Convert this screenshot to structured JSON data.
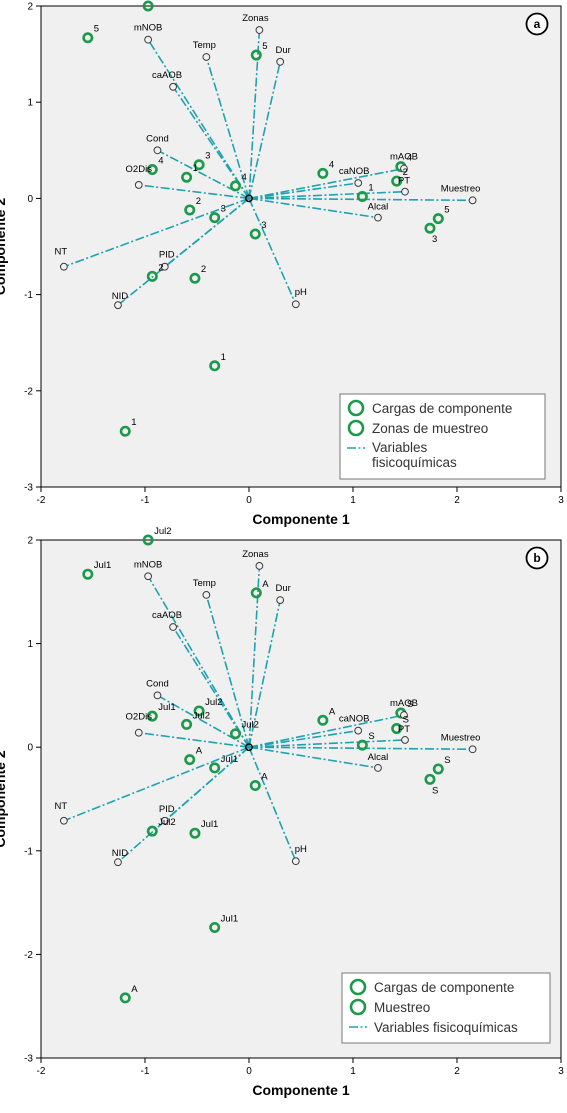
{
  "chart_data": [
    {
      "type": "scatter",
      "panel_label": "a",
      "xlabel": "Componente 1",
      "ylabel": "Componente 2",
      "xlim": [
        -2,
        3
      ],
      "ylim": [
        -3,
        2
      ],
      "xticks": [
        "-2",
        "-1",
        "0",
        "1",
        "2",
        "3"
      ],
      "yticks": [
        "-3",
        "-2",
        "-1",
        "0",
        "1",
        "2"
      ],
      "legend_position": "bottom-right",
      "legend": [
        "Cargas de componente",
        "Zonas de muestreo",
        "Variables fisicoquímicas"
      ],
      "variables": [
        {
          "name": "Zonas",
          "x": 0.1,
          "y": 1.75
        },
        {
          "name": "Dur",
          "x": 0.3,
          "y": 1.42
        },
        {
          "name": "Temp",
          "x": -0.41,
          "y": 1.47
        },
        {
          "name": "mNOB",
          "x": -0.97,
          "y": 1.65
        },
        {
          "name": "caAOB",
          "x": -0.73,
          "y": 1.16
        },
        {
          "name": "Cond",
          "x": -0.88,
          "y": 0.5
        },
        {
          "name": "O2Dis",
          "x": -1.06,
          "y": 0.14
        },
        {
          "name": "NT",
          "x": -1.78,
          "y": -0.71
        },
        {
          "name": "PID",
          "x": -0.81,
          "y": -0.71
        },
        {
          "name": "NID",
          "x": -1.26,
          "y": -1.11
        },
        {
          "name": "pH",
          "x": 0.45,
          "y": -1.1
        },
        {
          "name": "caNOB",
          "x": 1.05,
          "y": 0.16
        },
        {
          "name": "mAOB",
          "x": 1.49,
          "y": 0.31
        },
        {
          "name": "Alcal",
          "x": 1.24,
          "y": -0.2
        },
        {
          "name": "PT",
          "x": 1.5,
          "y": 0.07
        },
        {
          "name": "Muestreo",
          "x": 2.15,
          "y": -0.02
        }
      ],
      "zones": [
        {
          "label": "5",
          "x": -0.97,
          "y": 2.0
        },
        {
          "label": "5",
          "x": -1.55,
          "y": 1.67
        },
        {
          "label": "5",
          "x": 0.07,
          "y": 1.49
        },
        {
          "label": "4",
          "x": -0.93,
          "y": 0.3
        },
        {
          "label": "3",
          "x": -0.48,
          "y": 0.35
        },
        {
          "label": "1",
          "x": -0.6,
          "y": 0.22
        },
        {
          "label": "4",
          "x": -0.13,
          "y": 0.13
        },
        {
          "label": "2",
          "x": -0.57,
          "y": -0.12
        },
        {
          "label": "3",
          "x": -0.33,
          "y": -0.2
        },
        {
          "label": "3",
          "x": 0.06,
          "y": -0.37
        },
        {
          "label": "4",
          "x": 0.71,
          "y": 0.26
        },
        {
          "label": "4",
          "x": 1.46,
          "y": 0.33
        },
        {
          "label": "2",
          "x": 1.42,
          "y": 0.18
        },
        {
          "label": "1",
          "x": 1.09,
          "y": 0.02
        },
        {
          "label": "5",
          "x": 1.82,
          "y": -0.21
        },
        {
          "label": "3",
          "x": 1.74,
          "y": -0.31
        },
        {
          "label": "2",
          "x": -0.93,
          "y": -0.81
        },
        {
          "label": "2",
          "x": -0.52,
          "y": -0.83
        },
        {
          "label": "1",
          "x": -0.33,
          "y": -1.74
        },
        {
          "label": "1",
          "x": -1.19,
          "y": -2.42
        }
      ]
    },
    {
      "type": "scatter",
      "panel_label": "b",
      "xlabel": "Componente 1",
      "ylabel": "Componente 2",
      "xlim": [
        -2,
        3
      ],
      "ylim": [
        -3,
        2
      ],
      "xticks": [
        "-2",
        "-1",
        "0",
        "1",
        "2",
        "3"
      ],
      "yticks": [
        "-3",
        "-2",
        "-1",
        "0",
        "1",
        "2"
      ],
      "legend_position": "bottom-right",
      "legend": [
        "Cargas de componente",
        "Muestreo",
        "Variables fisicoquímicas"
      ],
      "variables": [
        {
          "name": "Zonas",
          "x": 0.1,
          "y": 1.75
        },
        {
          "name": "Dur",
          "x": 0.3,
          "y": 1.42
        },
        {
          "name": "Temp",
          "x": -0.41,
          "y": 1.47
        },
        {
          "name": "mNOB",
          "x": -0.97,
          "y": 1.65
        },
        {
          "name": "caAOB",
          "x": -0.73,
          "y": 1.16
        },
        {
          "name": "Cond",
          "x": -0.88,
          "y": 0.5
        },
        {
          "name": "O2Dis",
          "x": -1.06,
          "y": 0.14
        },
        {
          "name": "NT",
          "x": -1.78,
          "y": -0.71
        },
        {
          "name": "PID",
          "x": -0.81,
          "y": -0.71
        },
        {
          "name": "NID",
          "x": -1.26,
          "y": -1.11
        },
        {
          "name": "pH",
          "x": 0.45,
          "y": -1.1
        },
        {
          "name": "caNOB",
          "x": 1.05,
          "y": 0.16
        },
        {
          "name": "mAOB",
          "x": 1.49,
          "y": 0.31
        },
        {
          "name": "Alcal",
          "x": 1.24,
          "y": -0.2
        },
        {
          "name": "PT",
          "x": 1.5,
          "y": 0.07
        },
        {
          "name": "Muestreo",
          "x": 2.15,
          "y": -0.02
        }
      ],
      "samplings": [
        {
          "label": "Jul2",
          "x": -0.97,
          "y": 2.0
        },
        {
          "label": "Jul1",
          "x": -1.55,
          "y": 1.67
        },
        {
          "label": "A",
          "x": 0.07,
          "y": 1.49
        },
        {
          "label": "Jul1",
          "x": -0.93,
          "y": 0.3
        },
        {
          "label": "Jul2",
          "x": -0.48,
          "y": 0.35
        },
        {
          "label": "Jul2",
          "x": -0.6,
          "y": 0.22
        },
        {
          "label": "Jul2",
          "x": -0.13,
          "y": 0.13
        },
        {
          "label": "A",
          "x": -0.57,
          "y": -0.12
        },
        {
          "label": "Jul1",
          "x": -0.33,
          "y": -0.2
        },
        {
          "label": "A",
          "x": 0.06,
          "y": -0.37
        },
        {
          "label": "A",
          "x": 0.71,
          "y": 0.26
        },
        {
          "label": "S",
          "x": 1.46,
          "y": 0.33
        },
        {
          "label": "S",
          "x": 1.42,
          "y": 0.18
        },
        {
          "label": "S",
          "x": 1.09,
          "y": 0.02
        },
        {
          "label": "S",
          "x": 1.82,
          "y": -0.21
        },
        {
          "label": "S",
          "x": 1.74,
          "y": -0.31
        },
        {
          "label": "Jul2",
          "x": -0.93,
          "y": -0.81
        },
        {
          "label": "Jul1",
          "x": -0.52,
          "y": -0.83
        },
        {
          "label": "Jul1",
          "x": -0.33,
          "y": -1.74
        },
        {
          "label": "A",
          "x": -1.19,
          "y": -2.42
        }
      ]
    }
  ],
  "colors": {
    "background": "#f0f0f0",
    "vector": "#1ea2b0",
    "marker": "#1a9a4a",
    "variable_marker": "#3b3b3b"
  }
}
